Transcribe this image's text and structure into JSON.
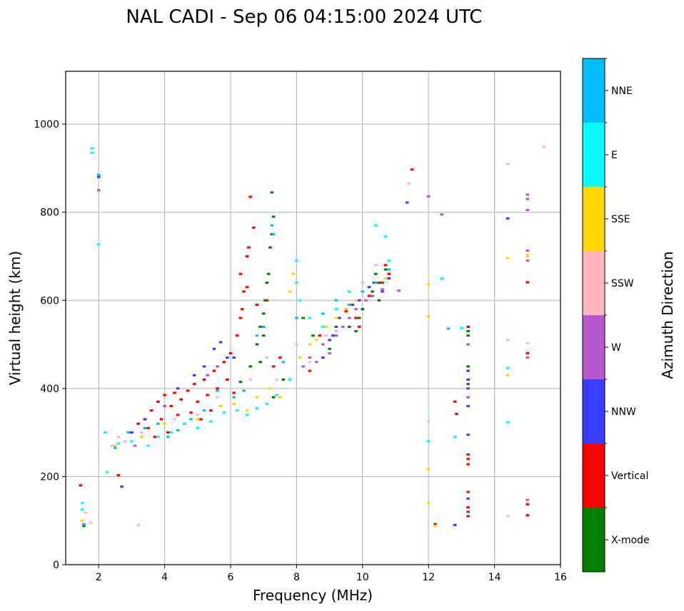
{
  "chart_data": {
    "type": "scatter",
    "title": "NAL CADI - Sep 06 04:15:00 2024 UTC",
    "xlabel": "Frequency (MHz)",
    "ylabel": "Virtual height (km)",
    "xlim": [
      1,
      16
    ],
    "ylim": [
      0,
      1120
    ],
    "xticks": [
      2,
      4,
      6,
      8,
      10,
      12,
      14,
      16
    ],
    "yticks": [
      0,
      200,
      400,
      600,
      800,
      1000
    ],
    "grid": true,
    "colorbar": {
      "label": "Azimuth Direction",
      "placement": "right",
      "categories": [
        {
          "name": "X-mode",
          "color": "#008000"
        },
        {
          "name": "Vertical",
          "color": "#ff0000"
        },
        {
          "name": "NNW",
          "color": "#3c3cff"
        },
        {
          "name": "W",
          "color": "#b855d3"
        },
        {
          "name": "SSW",
          "color": "#ffb6c1"
        },
        {
          "name": "SSE",
          "color": "#ffd700"
        },
        {
          "name": "E",
          "color": "#00ffff"
        },
        {
          "name": "NNE",
          "color": "#00bfff"
        }
      ]
    },
    "bin_width_mhz": 0.05,
    "bin_height_km": 5,
    "series": [
      {
        "name": "Vertical",
        "points": [
          [
            1.45,
            180
          ],
          [
            2.6,
            203
          ],
          [
            3.0,
            300
          ],
          [
            3.2,
            320
          ],
          [
            3.3,
            290
          ],
          [
            3.4,
            330
          ],
          [
            3.5,
            310
          ],
          [
            3.6,
            350
          ],
          [
            3.7,
            290
          ],
          [
            3.8,
            370
          ],
          [
            3.9,
            330
          ],
          [
            4.0,
            385
          ],
          [
            4.1,
            300
          ],
          [
            4.2,
            360
          ],
          [
            4.3,
            390
          ],
          [
            4.4,
            340
          ],
          [
            4.5,
            375
          ],
          [
            4.6,
            320
          ],
          [
            4.7,
            395
          ],
          [
            4.8,
            345
          ],
          [
            4.9,
            410
          ],
          [
            5.0,
            370
          ],
          [
            5.1,
            330
          ],
          [
            5.2,
            420
          ],
          [
            5.3,
            385
          ],
          [
            5.4,
            350
          ],
          [
            5.5,
            440
          ],
          [
            5.6,
            400
          ],
          [
            5.7,
            360
          ],
          [
            5.8,
            460
          ],
          [
            5.9,
            420
          ],
          [
            6.0,
            480
          ],
          [
            6.1,
            390
          ],
          [
            6.2,
            520
          ],
          [
            6.3,
            560
          ],
          [
            6.35,
            580
          ],
          [
            6.4,
            620
          ],
          [
            6.5,
            700
          ],
          [
            6.55,
            720
          ],
          [
            6.6,
            835
          ],
          [
            6.7,
            765
          ],
          [
            6.3,
            660
          ],
          [
            6.5,
            630
          ],
          [
            6.8,
            590
          ],
          [
            7.0,
            540
          ],
          [
            7.1,
            600
          ],
          [
            7.3,
            450
          ],
          [
            7.5,
            470
          ],
          [
            7.8,
            420
          ],
          [
            8.4,
            440
          ],
          [
            8.7,
            520
          ],
          [
            9.5,
            575
          ],
          [
            9.8,
            560
          ],
          [
            9.9,
            540
          ],
          [
            10.2,
            610
          ],
          [
            10.5,
            640
          ],
          [
            10.7,
            680
          ],
          [
            10.8,
            660
          ],
          [
            11.5,
            897
          ],
          [
            12.2,
            92
          ],
          [
            12.8,
            370
          ],
          [
            12.85,
            342
          ],
          [
            13.2,
            540
          ],
          [
            13.2,
            250
          ],
          [
            13.2,
            240
          ],
          [
            13.2,
            228
          ],
          [
            13.2,
            165
          ],
          [
            13.2,
            130
          ],
          [
            13.2,
            110
          ],
          [
            15.0,
            480
          ],
          [
            15.0,
            137
          ],
          [
            15.0,
            112
          ],
          [
            15.0,
            641
          ]
        ]
      },
      {
        "name": "X-mode",
        "points": [
          [
            1.55,
            88
          ],
          [
            6.3,
            415
          ],
          [
            6.6,
            450
          ],
          [
            6.8,
            500
          ],
          [
            6.9,
            540
          ],
          [
            7.0,
            570
          ],
          [
            7.05,
            600
          ],
          [
            7.1,
            640
          ],
          [
            7.15,
            660
          ],
          [
            7.2,
            720
          ],
          [
            7.25,
            750
          ],
          [
            7.3,
            790
          ],
          [
            7.25,
            845
          ],
          [
            7.0,
            520
          ],
          [
            6.9,
            460
          ],
          [
            7.3,
            380
          ],
          [
            7.6,
            420
          ],
          [
            8.2,
            560
          ],
          [
            8.5,
            520
          ],
          [
            9.0,
            490
          ],
          [
            9.6,
            540
          ],
          [
            9.8,
            530
          ],
          [
            9.9,
            560
          ],
          [
            10.0,
            580
          ],
          [
            10.3,
            620
          ],
          [
            10.35,
            640
          ],
          [
            10.4,
            660
          ],
          [
            10.5,
            600
          ],
          [
            10.6,
            640
          ],
          [
            10.7,
            670
          ],
          [
            13.2,
            530
          ],
          [
            13.2,
            520
          ],
          [
            13.2,
            450
          ],
          [
            13.2,
            410
          ]
        ]
      },
      {
        "name": "NNW",
        "points": [
          [
            2.0,
            880
          ],
          [
            2.7,
            177
          ],
          [
            3.0,
            300
          ],
          [
            3.4,
            330
          ],
          [
            4.4,
            400
          ],
          [
            4.9,
            430
          ],
          [
            5.2,
            450
          ],
          [
            5.5,
            490
          ],
          [
            5.7,
            505
          ],
          [
            5.9,
            470
          ],
          [
            6.1,
            470
          ],
          [
            8.8,
            470
          ],
          [
            9.0,
            510
          ],
          [
            9.1,
            520
          ],
          [
            9.2,
            540
          ],
          [
            9.3,
            560
          ],
          [
            9.5,
            580
          ],
          [
            9.7,
            590
          ],
          [
            9.9,
            600
          ],
          [
            10.2,
            630
          ],
          [
            10.6,
            620
          ],
          [
            10.8,
            650
          ],
          [
            11.35,
            822
          ],
          [
            12.8,
            90
          ],
          [
            13.2,
            440
          ],
          [
            13.2,
            420
          ],
          [
            13.2,
            400
          ],
          [
            13.2,
            380
          ],
          [
            13.2,
            360
          ],
          [
            13.2,
            295
          ],
          [
            13.2,
            150
          ],
          [
            13.2,
            120
          ],
          [
            14.4,
            786
          ]
        ]
      },
      {
        "name": "W",
        "points": [
          [
            2.0,
            850
          ],
          [
            3.1,
            270
          ],
          [
            4.0,
            360
          ],
          [
            5.3,
            430
          ],
          [
            5.6,
            450
          ],
          [
            8.2,
            450
          ],
          [
            8.4,
            470
          ],
          [
            8.6,
            460
          ],
          [
            8.8,
            500
          ],
          [
            9.0,
            480
          ],
          [
            9.2,
            520
          ],
          [
            9.4,
            540
          ],
          [
            9.6,
            560
          ],
          [
            9.8,
            580
          ],
          [
            10.1,
            600
          ],
          [
            10.3,
            610
          ],
          [
            10.6,
            625
          ],
          [
            11.1,
            622
          ],
          [
            12.0,
            836
          ],
          [
            12.4,
            795
          ],
          [
            13.2,
            500
          ],
          [
            13.2,
            380
          ],
          [
            15.0,
            840
          ],
          [
            15.0,
            830
          ],
          [
            15.0,
            805
          ],
          [
            15.0,
            713
          ],
          [
            15.0,
            690
          ],
          [
            15.0,
            470
          ],
          [
            15.0,
            147
          ]
        ]
      },
      {
        "name": "SSW",
        "points": [
          [
            1.6,
            118
          ],
          [
            1.75,
            95
          ],
          [
            2.4,
            270
          ],
          [
            2.6,
            290
          ],
          [
            2.8,
            280
          ],
          [
            3.3,
            300
          ],
          [
            3.2,
            90
          ],
          [
            4.3,
            330
          ],
          [
            5.0,
            340
          ],
          [
            5.6,
            380
          ],
          [
            6.2,
            350
          ],
          [
            6.6,
            420
          ],
          [
            7.1,
            470
          ],
          [
            7.4,
            420
          ],
          [
            8.0,
            500
          ],
          [
            8.4,
            460
          ],
          [
            8.9,
            520
          ],
          [
            9.2,
            530
          ],
          [
            9.8,
            600
          ],
          [
            10.0,
            640
          ],
          [
            10.4,
            680
          ],
          [
            10.8,
            690
          ],
          [
            11.4,
            865
          ],
          [
            12.0,
            325
          ],
          [
            12.4,
            647
          ],
          [
            14.4,
            910
          ],
          [
            14.4,
            510
          ],
          [
            14.4,
            110
          ],
          [
            15.0,
            700
          ],
          [
            15.0,
            503
          ],
          [
            15.5,
            948
          ]
        ]
      },
      {
        "name": "SSE",
        "points": [
          [
            1.5,
            100
          ],
          [
            2.5,
            270
          ],
          [
            3.3,
            290
          ],
          [
            4.0,
            320
          ],
          [
            5.0,
            330
          ],
          [
            5.7,
            360
          ],
          [
            6.1,
            365
          ],
          [
            6.5,
            350
          ],
          [
            6.8,
            380
          ],
          [
            7.2,
            400
          ],
          [
            7.5,
            380
          ],
          [
            7.8,
            620
          ],
          [
            7.9,
            660
          ],
          [
            8.1,
            470
          ],
          [
            8.4,
            500
          ],
          [
            8.6,
            510
          ],
          [
            8.9,
            540
          ],
          [
            9.2,
            560
          ],
          [
            9.5,
            580
          ],
          [
            10.7,
            650
          ],
          [
            12.0,
            636
          ],
          [
            12.0,
            563
          ],
          [
            12.0,
            217
          ],
          [
            12.0,
            141
          ],
          [
            12.2,
            88
          ],
          [
            14.4,
            696
          ],
          [
            14.4,
            430
          ],
          [
            15.0,
            703
          ]
        ]
      },
      {
        "name": "E",
        "points": [
          [
            1.5,
            140
          ],
          [
            1.5,
            125
          ],
          [
            1.8,
            945
          ],
          [
            1.8,
            935
          ],
          [
            2.0,
            727
          ],
          [
            2.2,
            300
          ],
          [
            2.25,
            210
          ],
          [
            2.6,
            275
          ],
          [
            3.0,
            280
          ],
          [
            3.5,
            270
          ],
          [
            3.8,
            290
          ],
          [
            4.2,
            300
          ],
          [
            4.6,
            320
          ],
          [
            5.0,
            310
          ],
          [
            5.4,
            325
          ],
          [
            5.8,
            345
          ],
          [
            6.2,
            350
          ],
          [
            6.5,
            340
          ],
          [
            6.8,
            355
          ],
          [
            7.1,
            365
          ],
          [
            7.4,
            385
          ],
          [
            7.8,
            420
          ],
          [
            8.0,
            690
          ],
          [
            8.0,
            640
          ],
          [
            8.1,
            600
          ],
          [
            8.4,
            560
          ],
          [
            8.8,
            540
          ],
          [
            9.2,
            580
          ],
          [
            9.6,
            620
          ],
          [
            10.4,
            770
          ],
          [
            10.7,
            745
          ],
          [
            10.8,
            690
          ],
          [
            12.0,
            280
          ],
          [
            12.4,
            650
          ],
          [
            12.8,
            290
          ],
          [
            13.0,
            537
          ],
          [
            14.4,
            446
          ],
          [
            14.4,
            323
          ]
        ]
      },
      {
        "name": "NNE",
        "points": [
          [
            1.55,
            92
          ],
          [
            2.0,
            885
          ],
          [
            2.5,
            265
          ],
          [
            2.9,
            300
          ],
          [
            3.4,
            310
          ],
          [
            3.8,
            320
          ],
          [
            4.1,
            290
          ],
          [
            4.4,
            305
          ],
          [
            4.8,
            330
          ],
          [
            5.2,
            350
          ],
          [
            5.6,
            395
          ],
          [
            6.1,
            380
          ],
          [
            6.4,
            395
          ],
          [
            6.8,
            520
          ],
          [
            7.0,
            540
          ],
          [
            7.3,
            750
          ],
          [
            7.25,
            770
          ],
          [
            7.6,
            460
          ],
          [
            8.0,
            560
          ],
          [
            8.8,
            570
          ],
          [
            9.2,
            600
          ],
          [
            9.6,
            590
          ],
          [
            10.0,
            620
          ],
          [
            10.4,
            640
          ],
          [
            10.8,
            670
          ],
          [
            12.6,
            536
          ]
        ]
      }
    ]
  }
}
